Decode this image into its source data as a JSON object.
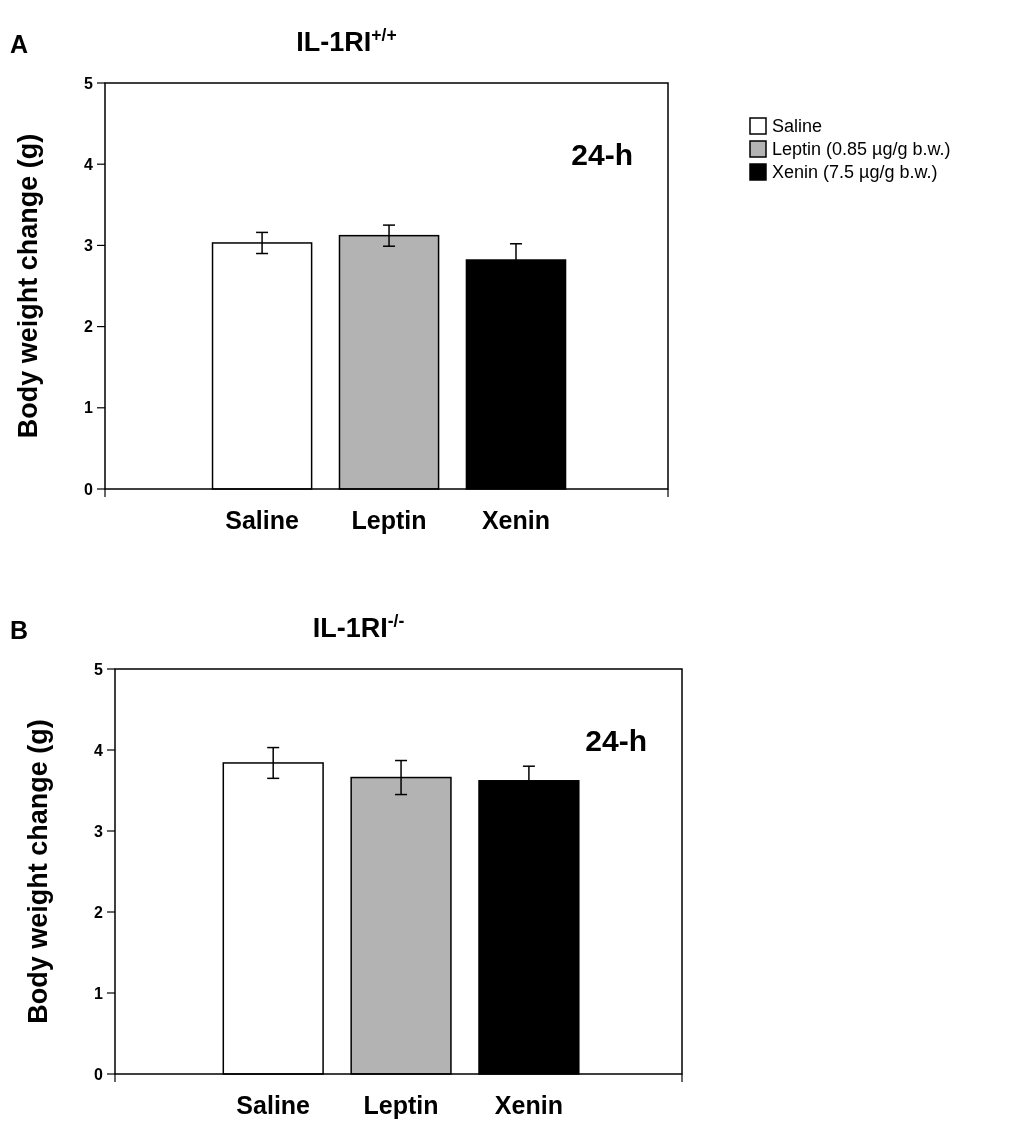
{
  "chart_data": [
    {
      "type": "bar",
      "title": "IL-1RI$^{+/+}$",
      "ylabel": "Body weight change (g)",
      "categories": [
        "Saline",
        "Leptin",
        "Xenin"
      ],
      "series": [
        {
          "name": "Saline",
          "color": "#ffffff",
          "values": [
            3.03,
            null,
            null
          ],
          "errors": [
            0.13,
            null,
            null
          ]
        },
        {
          "name": "Leptin (0.85 µg/g b.w.)",
          "color": "#b3b3b3",
          "values": [
            null,
            3.12,
            null
          ],
          "errors": [
            null,
            0.13,
            null
          ]
        },
        {
          "name": "Xenin (7.5 µg/g b.w.)",
          "color": "#000000",
          "values": [
            null,
            null,
            2.82
          ],
          "errors": [
            null,
            null,
            0.2
          ]
        }
      ],
      "ylim": [
        0,
        5
      ],
      "yticks": [
        0,
        1,
        2,
        3,
        4,
        5
      ],
      "legend": "right",
      "grid": false,
      "annotations": [
        "A",
        "24-h"
      ]
    },
    {
      "type": "bar",
      "title": "IL-1RI$^{-/-}$",
      "ylabel": "Body weight change (g)",
      "categories": [
        "Saline",
        "Leptin",
        "Xenin"
      ],
      "values": [
        3.84,
        3.66,
        3.62
      ],
      "errors": [
        0.19,
        0.21,
        0.18
      ],
      "colors": [
        "#ffffff",
        "#b3b3b3",
        "#000000"
      ],
      "ylim": [
        0,
        5
      ],
      "yticks": [
        0,
        1,
        2,
        3,
        4,
        5
      ],
      "legend": false,
      "grid": false,
      "annotations": [
        "B",
        "24-h"
      ]
    }
  ]
}
